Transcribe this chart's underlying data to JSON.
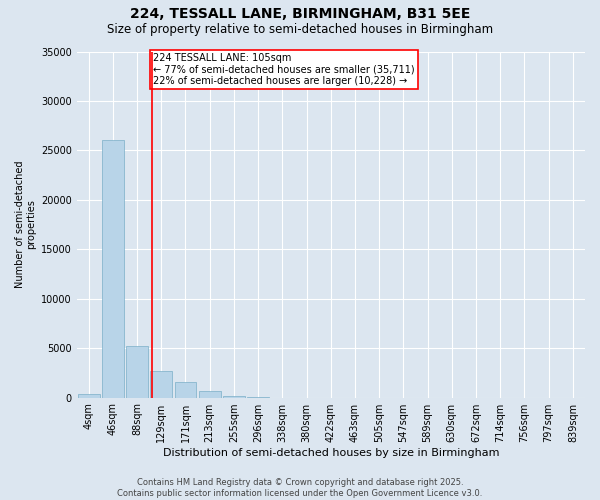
{
  "title": "224, TESSALL LANE, BIRMINGHAM, B31 5EE",
  "subtitle": "Size of property relative to semi-detached houses in Birmingham",
  "xlabel": "Distribution of semi-detached houses by size in Birmingham",
  "ylabel": "Number of semi-detached\nproperties",
  "bin_labels": [
    "4sqm",
    "46sqm",
    "88sqm",
    "129sqm",
    "171sqm",
    "213sqm",
    "255sqm",
    "296sqm",
    "338sqm",
    "380sqm",
    "422sqm",
    "463sqm",
    "505sqm",
    "547sqm",
    "589sqm",
    "630sqm",
    "672sqm",
    "714sqm",
    "756sqm",
    "797sqm",
    "839sqm"
  ],
  "values": [
    400,
    26000,
    5200,
    2700,
    1600,
    700,
    200,
    50,
    0,
    0,
    0,
    0,
    0,
    0,
    0,
    0,
    0,
    0,
    0,
    0,
    0
  ],
  "bar_color": "#b8d4e8",
  "bar_edge_color": "#7aafc8",
  "property_line_x": 2.62,
  "property_line_color": "red",
  "annotation_text": "224 TESSALL LANE: 105sqm\n← 77% of semi-detached houses are smaller (35,711)\n22% of semi-detached houses are larger (10,228) →",
  "annotation_fontsize": 7,
  "background_color": "#dce6f0",
  "grid_color": "#ffffff",
  "ylim": [
    0,
    35000
  ],
  "yticks": [
    0,
    5000,
    10000,
    15000,
    20000,
    25000,
    30000,
    35000
  ],
  "footer": "Contains HM Land Registry data © Crown copyright and database right 2025.\nContains public sector information licensed under the Open Government Licence v3.0.",
  "title_fontsize": 10,
  "subtitle_fontsize": 8.5,
  "xlabel_fontsize": 8,
  "ylabel_fontsize": 7,
  "tick_fontsize": 7,
  "footer_fontsize": 6
}
